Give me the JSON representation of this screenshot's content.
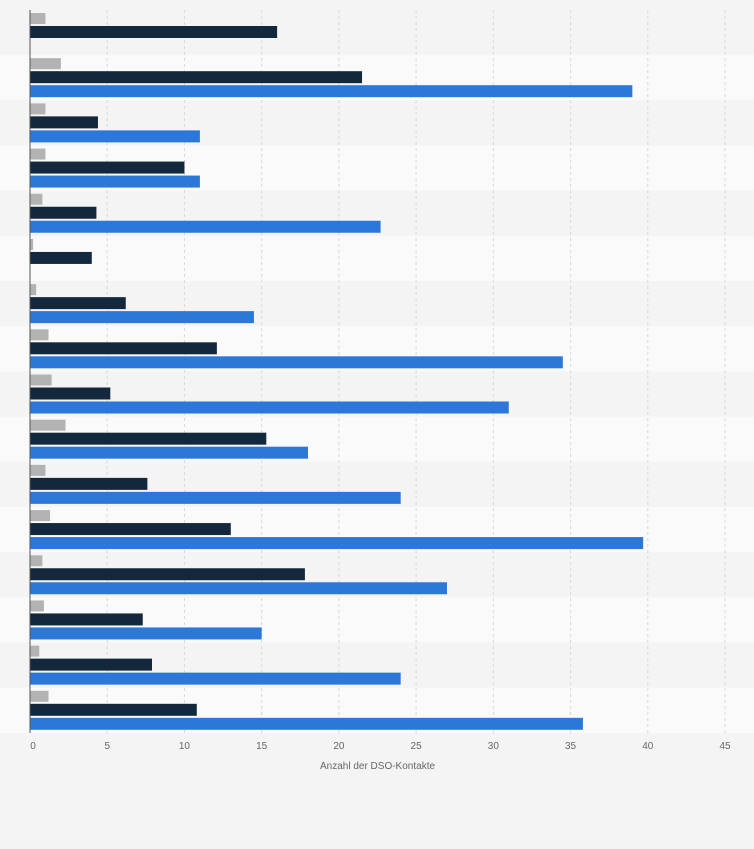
{
  "chart_data": {
    "type": "bar",
    "orientation": "horizontal",
    "categories": [
      "",
      "",
      "",
      "",
      "",
      "",
      "",
      "",
      "",
      "",
      "",
      "",
      "",
      "",
      "",
      ""
    ],
    "series": [
      {
        "color": "#b3b3b3",
        "values": [
          1.0,
          2.0,
          1.0,
          1.0,
          0.8,
          0.2,
          0.4,
          1.2,
          1.4,
          2.3,
          1.0,
          1.3,
          0.8,
          0.9,
          0.6,
          1.2
        ]
      },
      {
        "color": "#14283d",
        "values": [
          16.0,
          21.5,
          4.4,
          10.0,
          4.3,
          4.0,
          6.2,
          12.1,
          5.2,
          15.3,
          7.6,
          13.0,
          17.8,
          7.3,
          7.9,
          10.8
        ]
      },
      {
        "color": "#2b78d9",
        "values": [
          null,
          39.0,
          11.0,
          11.0,
          22.7,
          null,
          14.5,
          34.5,
          31.0,
          18.0,
          24.0,
          39.7,
          27.0,
          15.0,
          24.0,
          35.8
        ]
      }
    ],
    "xlabel": "Anzahl der DSO-Kontakte",
    "xlim": [
      0,
      45
    ],
    "xticks": [
      0,
      5,
      10,
      15,
      20,
      25,
      30,
      35,
      40,
      45
    ],
    "xtick_labels": [
      "0",
      "5",
      "10",
      "15",
      "20",
      "25",
      "30",
      "35",
      "40",
      "45"
    ],
    "grid": true,
    "legend": "none"
  }
}
